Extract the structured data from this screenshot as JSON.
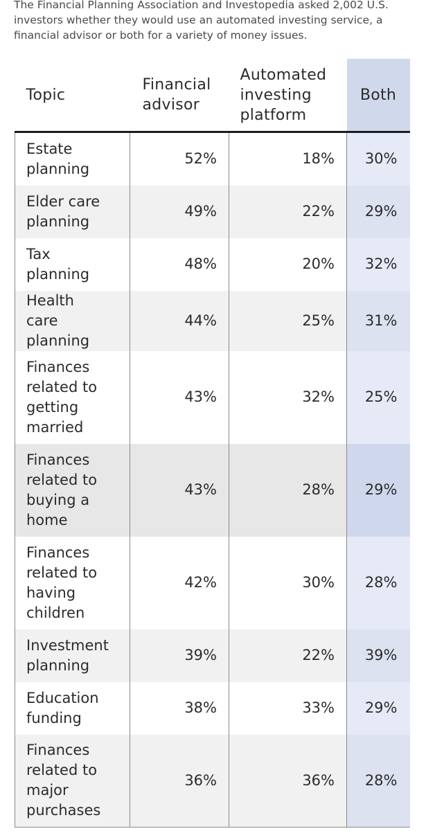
{
  "intro_text": "The Financial Planning Association and Investopedia asked 2,002 U.S. investors whether they would use an automated investing service, a financial advisor or both for a variety of money issues.",
  "chart_data": {
    "type": "table",
    "columns": [
      "Topic",
      "Financial advisor",
      "Automated investing platform",
      "Both"
    ],
    "rows": [
      {
        "topic": "Estate planning",
        "advisor": "52%",
        "automated": "18%",
        "both": "30%"
      },
      {
        "topic": "Elder care planning",
        "advisor": "49%",
        "automated": "22%",
        "both": "29%"
      },
      {
        "topic": "Tax planning",
        "advisor": "48%",
        "automated": "20%",
        "both": "32%"
      },
      {
        "topic": "Health care planning",
        "advisor": "44%",
        "automated": "25%",
        "both": "31%"
      },
      {
        "topic": "Finances related to getting married",
        "advisor": "43%",
        "automated": "32%",
        "both": "25%"
      },
      {
        "topic": "Finances related to buying a home",
        "advisor": "43%",
        "automated": "28%",
        "both": "29%"
      },
      {
        "topic": "Finances related to having children",
        "advisor": "42%",
        "automated": "30%",
        "both": "28%"
      },
      {
        "topic": "Investment planning",
        "advisor": "39%",
        "automated": "22%",
        "both": "39%"
      },
      {
        "topic": "Education funding",
        "advisor": "38%",
        "automated": "33%",
        "both": "29%"
      },
      {
        "topic": "Finances related to major purchases",
        "advisor": "36%",
        "automated": "36%",
        "both": "28%"
      }
    ]
  }
}
